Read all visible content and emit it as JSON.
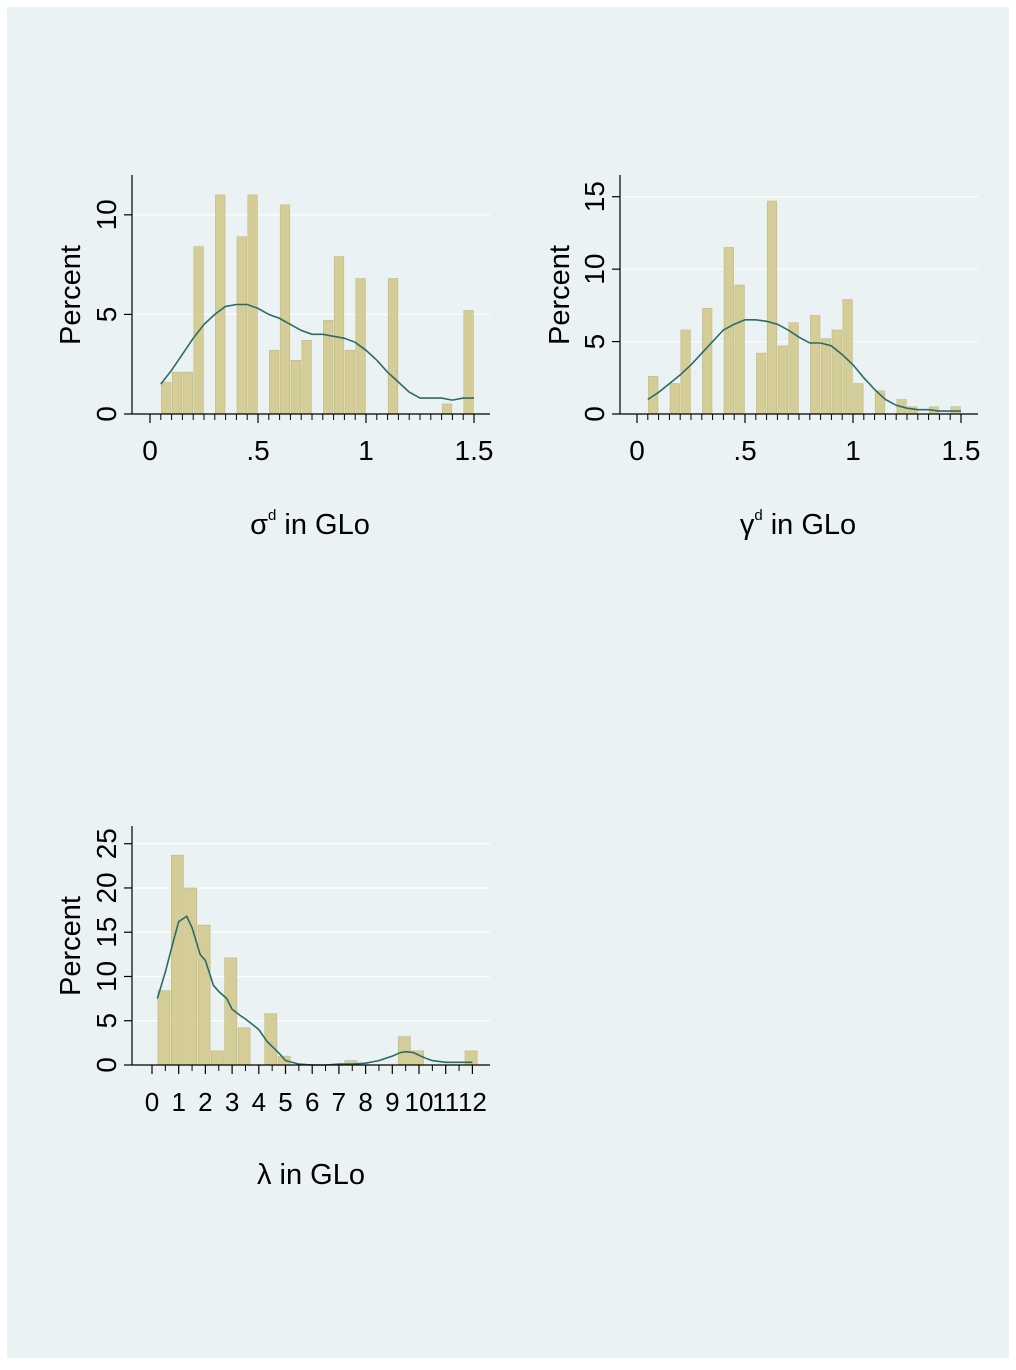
{
  "colors": {
    "background": "#eaf2f3",
    "bar_fill": "#d5cd97",
    "bar_stroke": "#c3b97d",
    "kde_line": "#2c6b67",
    "axis": "#000000",
    "grid": "#ffffff"
  },
  "chart_data": [
    {
      "type": "bar",
      "subtype": "histogram with kernel density line",
      "xlabel": "σ",
      "xlabel_sup": "d",
      "xlabel_suffix": " in GLo",
      "ylabel": "Percent",
      "xlim": [
        0,
        1.5
      ],
      "ylim": [
        0,
        12
      ],
      "xticks": [
        0,
        0.5,
        1,
        1.5
      ],
      "xtick_labels": [
        "0",
        ".5",
        "1",
        "1.5"
      ],
      "yticks": [
        0,
        5,
        10
      ],
      "ytick_labels": [
        "0",
        "5",
        "10"
      ],
      "x_minor_ticks": [
        0.05,
        0.1,
        0.15,
        0.2,
        0.25,
        0.3,
        0.35,
        0.4,
        0.45,
        0.5,
        0.55,
        0.6,
        0.65,
        0.7,
        0.75,
        0.8,
        0.85,
        0.9,
        0.95,
        1.0,
        1.05,
        1.1,
        1.15,
        1.2,
        1.25,
        1.3,
        1.35,
        1.4,
        1.45,
        1.5
      ],
      "grid": true,
      "bin_width": 0.05,
      "bars": [
        {
          "x": 0.05,
          "value": 1.6
        },
        {
          "x": 0.1,
          "value": 2.1
        },
        {
          "x": 0.15,
          "value": 2.1
        },
        {
          "x": 0.2,
          "value": 8.4
        },
        {
          "x": 0.3,
          "value": 11.0
        },
        {
          "x": 0.4,
          "value": 8.9
        },
        {
          "x": 0.45,
          "value": 11.0
        },
        {
          "x": 0.55,
          "value": 3.2
        },
        {
          "x": 0.6,
          "value": 10.5
        },
        {
          "x": 0.65,
          "value": 2.7
        },
        {
          "x": 0.7,
          "value": 3.7
        },
        {
          "x": 0.8,
          "value": 4.7
        },
        {
          "x": 0.85,
          "value": 7.9
        },
        {
          "x": 0.9,
          "value": 3.2
        },
        {
          "x": 0.95,
          "value": 6.8
        },
        {
          "x": 1.1,
          "value": 6.8
        },
        {
          "x": 1.35,
          "value": 0.5
        },
        {
          "x": 1.45,
          "value": 5.2
        }
      ],
      "density_line": {
        "x": [
          0.05,
          0.1,
          0.15,
          0.2,
          0.25,
          0.3,
          0.35,
          0.4,
          0.45,
          0.5,
          0.55,
          0.6,
          0.65,
          0.7,
          0.75,
          0.8,
          0.85,
          0.9,
          0.95,
          1.0,
          1.05,
          1.1,
          1.15,
          1.2,
          1.25,
          1.3,
          1.35,
          1.4,
          1.45,
          1.5
        ],
        "y": [
          1.5,
          2.2,
          3.0,
          3.8,
          4.5,
          5.0,
          5.4,
          5.5,
          5.5,
          5.3,
          5.0,
          4.8,
          4.5,
          4.2,
          4.0,
          4.0,
          3.9,
          3.8,
          3.6,
          3.2,
          2.7,
          2.1,
          1.6,
          1.1,
          0.8,
          0.8,
          0.8,
          0.7,
          0.8,
          0.8
        ]
      }
    },
    {
      "type": "bar",
      "subtype": "histogram with kernel density line",
      "xlabel": "γ",
      "xlabel_sup": "d",
      "xlabel_suffix": " in GLo",
      "ylabel": "Percent",
      "xlim": [
        0,
        1.5
      ],
      "ylim": [
        0,
        16.5
      ],
      "xticks": [
        0,
        0.5,
        1,
        1.5
      ],
      "xtick_labels": [
        "0",
        ".5",
        "1",
        "1.5"
      ],
      "yticks": [
        0,
        5,
        10,
        15
      ],
      "ytick_labels": [
        "0",
        "5",
        "10",
        "15"
      ],
      "x_minor_ticks": [
        0.05,
        0.1,
        0.15,
        0.2,
        0.25,
        0.3,
        0.35,
        0.4,
        0.45,
        0.5,
        0.55,
        0.6,
        0.65,
        0.7,
        0.75,
        0.8,
        0.85,
        0.9,
        0.95,
        1.0,
        1.05,
        1.1,
        1.15,
        1.2,
        1.25,
        1.3,
        1.35,
        1.4,
        1.45,
        1.5
      ],
      "grid": true,
      "bin_width": 0.05,
      "bars": [
        {
          "x": 0.05,
          "value": 2.6
        },
        {
          "x": 0.15,
          "value": 2.1
        },
        {
          "x": 0.2,
          "value": 5.8
        },
        {
          "x": 0.3,
          "value": 7.3
        },
        {
          "x": 0.4,
          "value": 11.5
        },
        {
          "x": 0.45,
          "value": 8.9
        },
        {
          "x": 0.55,
          "value": 4.2
        },
        {
          "x": 0.6,
          "value": 14.7
        },
        {
          "x": 0.65,
          "value": 4.7
        },
        {
          "x": 0.7,
          "value": 6.3
        },
        {
          "x": 0.8,
          "value": 6.8
        },
        {
          "x": 0.85,
          "value": 5.2
        },
        {
          "x": 0.9,
          "value": 5.8
        },
        {
          "x": 0.95,
          "value": 7.9
        },
        {
          "x": 1.0,
          "value": 2.1
        },
        {
          "x": 1.1,
          "value": 1.6
        },
        {
          "x": 1.2,
          "value": 1.0
        },
        {
          "x": 1.25,
          "value": 0.5
        },
        {
          "x": 1.35,
          "value": 0.5
        },
        {
          "x": 1.45,
          "value": 0.5
        }
      ],
      "density_line": {
        "x": [
          0.05,
          0.1,
          0.15,
          0.2,
          0.25,
          0.3,
          0.35,
          0.4,
          0.45,
          0.5,
          0.55,
          0.6,
          0.65,
          0.7,
          0.75,
          0.8,
          0.85,
          0.9,
          0.95,
          1.0,
          1.05,
          1.1,
          1.15,
          1.2,
          1.25,
          1.3,
          1.35,
          1.4,
          1.45,
          1.5
        ],
        "y": [
          1.0,
          1.5,
          2.1,
          2.7,
          3.4,
          4.2,
          5.0,
          5.8,
          6.2,
          6.5,
          6.5,
          6.4,
          6.2,
          5.8,
          5.3,
          4.9,
          4.9,
          4.7,
          4.1,
          3.4,
          2.5,
          1.7,
          1.0,
          0.6,
          0.4,
          0.3,
          0.3,
          0.2,
          0.2,
          0.2
        ]
      }
    },
    {
      "type": "bar",
      "subtype": "histogram with kernel density line",
      "xlabel": "λ in GLo",
      "ylabel": "Percent",
      "xlim": [
        0,
        12
      ],
      "ylim": [
        0,
        27
      ],
      "xticks": [
        0,
        1,
        2,
        3,
        4,
        5,
        6,
        7,
        8,
        9,
        10,
        11,
        12
      ],
      "xtick_labels": [
        "0",
        "1",
        "2",
        "3",
        "4",
        "5",
        "6",
        "7",
        "8",
        "9",
        "10",
        "11",
        "12"
      ],
      "yticks": [
        0,
        5,
        10,
        15,
        20,
        25
      ],
      "ytick_labels": [
        "0",
        "5",
        "10",
        "15",
        "20",
        "25"
      ],
      "x_minor_ticks": [
        0.5,
        1.5,
        2.5,
        3.5,
        4.5,
        5.5,
        6.5,
        7.5,
        8.5,
        9.5,
        10.5,
        11.5
      ],
      "grid": true,
      "bin_width": 0.5,
      "bars": [
        {
          "x": 0.2,
          "value": 8.4
        },
        {
          "x": 0.7,
          "value": 23.7
        },
        {
          "x": 1.2,
          "value": 20.0
        },
        {
          "x": 1.7,
          "value": 15.8
        },
        {
          "x": 2.2,
          "value": 1.6
        },
        {
          "x": 2.7,
          "value": 12.1
        },
        {
          "x": 3.2,
          "value": 4.2
        },
        {
          "x": 4.2,
          "value": 5.8
        },
        {
          "x": 4.7,
          "value": 1.0
        },
        {
          "x": 7.2,
          "value": 0.5
        },
        {
          "x": 9.2,
          "value": 3.2
        },
        {
          "x": 9.7,
          "value": 1.6
        },
        {
          "x": 11.7,
          "value": 1.6
        }
      ],
      "density_line": {
        "x": [
          0.2,
          0.5,
          0.8,
          1.0,
          1.3,
          1.5,
          1.8,
          2.0,
          2.3,
          2.5,
          2.8,
          3.0,
          3.3,
          3.5,
          3.8,
          4.0,
          4.3,
          4.5,
          4.8,
          5.0,
          5.5,
          6.0,
          6.5,
          7.0,
          7.5,
          8.0,
          8.5,
          9.0,
          9.3,
          9.5,
          9.8,
          10.0,
          10.3,
          10.5,
          11.0,
          11.5,
          12.0
        ],
        "y": [
          7.5,
          10.5,
          14.0,
          16.2,
          16.8,
          15.5,
          12.5,
          11.8,
          9.0,
          8.3,
          7.5,
          6.3,
          5.6,
          5.2,
          4.5,
          4.0,
          2.7,
          2.1,
          1.2,
          0.5,
          0.1,
          0.0,
          0.0,
          0.1,
          0.1,
          0.2,
          0.5,
          1.0,
          1.4,
          1.5,
          1.4,
          1.1,
          0.7,
          0.5,
          0.3,
          0.3,
          0.3
        ]
      }
    }
  ]
}
